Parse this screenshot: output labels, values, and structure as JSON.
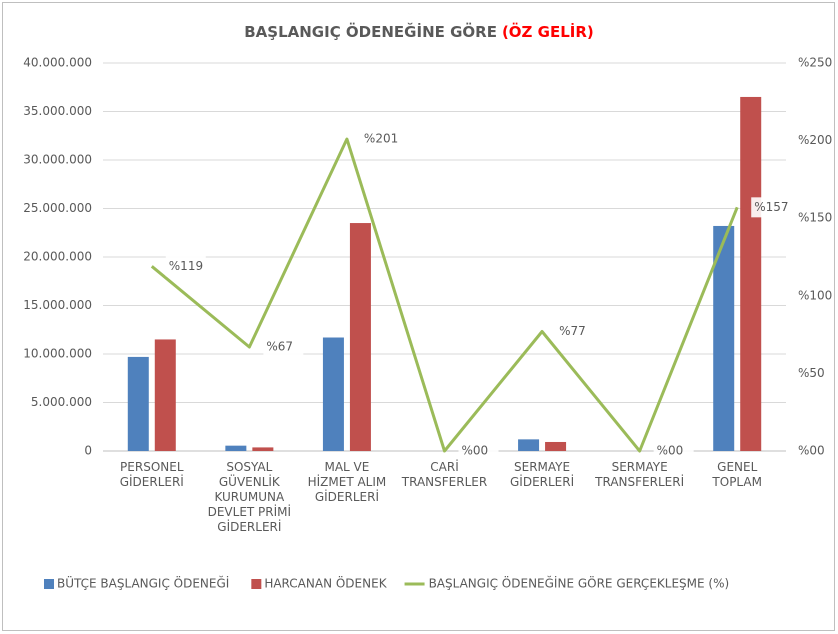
{
  "chart_data": {
    "type": "bar",
    "title": "BAŞLANGIÇ ÖDENEĞİNE GÖRE",
    "title_highlight": "(ÖZ GELİR)",
    "title_highlight_color": "#ff0000",
    "categories": [
      "PERSONEL GİDERLERİ",
      "SOSYAL GÜVENLİK KURUMUNA DEVLET PRİMİ GİDERLERİ",
      "MAL VE HİZMET ALIM GİDERLERİ",
      "CARİ TRANSFERLER",
      "SERMAYE GİDERLERİ",
      "SERMAYE TRANSFERLERİ",
      "GENEL TOPLAM"
    ],
    "series": [
      {
        "name": "BÜTÇE BAŞLANGIÇ ÖDENEĞİ",
        "type": "bar",
        "color": "#4f81bd",
        "values": [
          9700000,
          550000,
          11700000,
          0,
          1200000,
          0,
          23200000
        ]
      },
      {
        "name": "HARCANAN ÖDENEK",
        "type": "bar",
        "color": "#c0504d",
        "values": [
          11500000,
          370000,
          23500000,
          0,
          930000,
          0,
          36500000
        ]
      },
      {
        "name": "BAŞLANGIÇ ÖDENEĞİNE GÖRE GERÇEKLEŞME (%)",
        "type": "line",
        "axis": "y2",
        "color": "#9bbb59",
        "values": [
          119,
          67,
          201,
          0,
          77,
          0,
          157
        ],
        "value_labels": [
          "%119",
          "%67",
          "%201",
          "%00",
          "%77",
          "%00",
          "%157"
        ]
      }
    ],
    "ylim": [
      0,
      40000000
    ],
    "yticks": [
      0,
      {
        "value": 5000000,
        "label": "5.000.000"
      },
      {
        "value": 10000000,
        "label": "10.000.000"
      },
      {
        "value": 15000000,
        "label": "15.000.000"
      },
      {
        "value": 20000000,
        "label": "20.000.000"
      },
      {
        "value": 25000000,
        "label": "25.000.000"
      },
      {
        "value": 30000000,
        "label": "30.000.000"
      },
      {
        "value": 35000000,
        "label": "35.000.000"
      },
      {
        "value": 40000000,
        "label": "40.000.000"
      }
    ],
    "y2lim": [
      0,
      250
    ],
    "y2ticks": [
      {
        "value": 0,
        "label": "%00"
      },
      {
        "value": 50,
        "label": "%50"
      },
      {
        "value": 100,
        "label": "%100"
      },
      {
        "value": 150,
        "label": "%150"
      },
      {
        "value": 200,
        "label": "%200"
      },
      {
        "value": 250,
        "label": "%250"
      }
    ],
    "grid": true,
    "legend": "bottom"
  }
}
